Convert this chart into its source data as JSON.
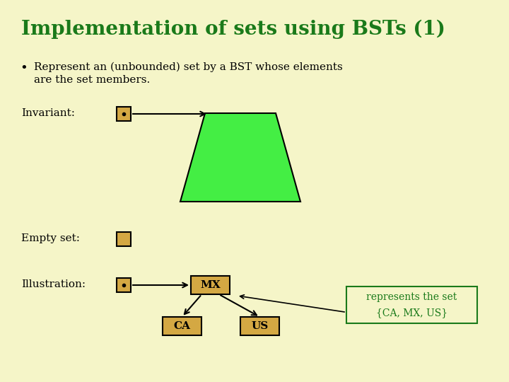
{
  "background_color": "#f5f5c8",
  "title": "Implementation of sets using BSTs (1)",
  "title_color": "#1a7a1a",
  "title_fontsize": 20,
  "bullet_text_line1": "Represent an (unbounded) set by a BST whose elements",
  "bullet_text_line2": "are the set members.",
  "bullet_color": "#1a7a1a",
  "body_color": "#000000",
  "label_invariant": "Invariant:",
  "label_empty": "Empty set:",
  "label_illustration": "Illustration:",
  "label_fontsize": 11,
  "node_fill_color": "#d4a843",
  "node_edge_color": "#000000",
  "green_fill": "#44ee44",
  "green_edge": "#000000",
  "arrow_color": "#000000",
  "annotation_text_line1": "represents the set",
  "annotation_text_line2": "{CA, MX, US}",
  "annotation_color": "#1a7a1a",
  "annotation_bg": "#f5f5c8",
  "annotation_border": "#1a7a1a",
  "mx_label": "MX",
  "ca_label": "CA",
  "us_label": "US"
}
